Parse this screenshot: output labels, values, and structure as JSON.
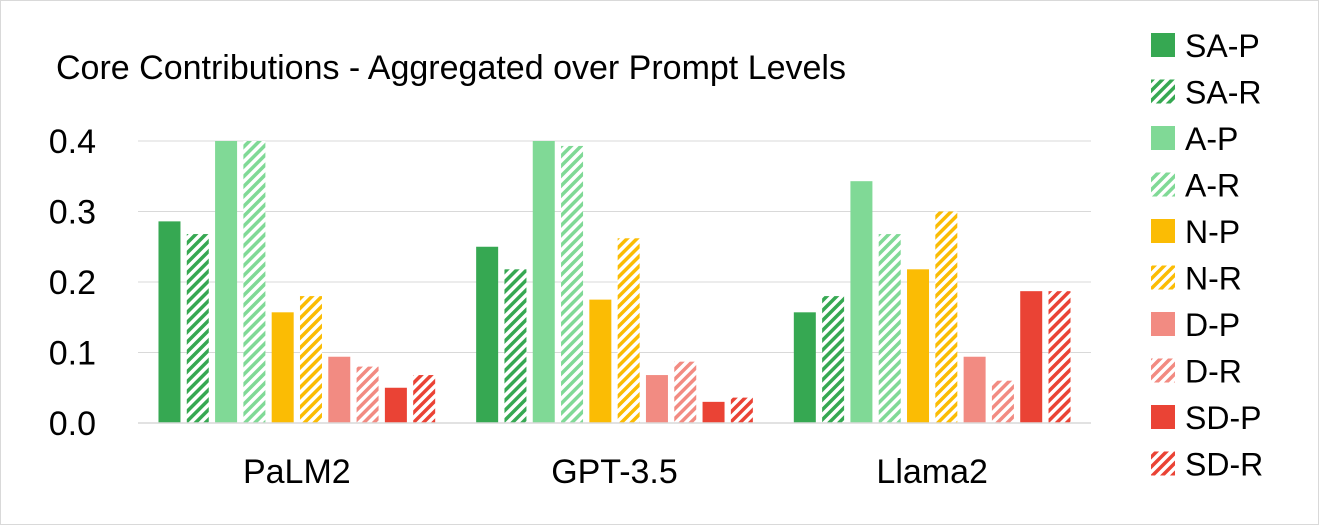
{
  "chart_data": {
    "type": "bar",
    "title": "Core Contributions - Aggregated over Prompt Levels",
    "categories": [
      "PaLM2",
      "GPT-3.5",
      "Llama2"
    ],
    "ylim": [
      0,
      0.4
    ],
    "yticks": [
      "0.0",
      "0.1",
      "0.2",
      "0.3",
      "0.4"
    ],
    "grid": true,
    "legend_position": "right",
    "series": [
      {
        "name": "SA-P",
        "values": [
          0.286,
          0.25,
          0.157
        ],
        "color": "#36a852",
        "pattern": "solid"
      },
      {
        "name": "SA-R",
        "values": [
          0.268,
          0.218,
          0.18
        ],
        "color": "#36a852",
        "pattern": "hatch"
      },
      {
        "name": "A-P",
        "values": [
          0.4,
          0.4,
          0.343
        ],
        "color": "#80d996",
        "pattern": "solid"
      },
      {
        "name": "A-R",
        "values": [
          0.4,
          0.393,
          0.268
        ],
        "color": "#80d996",
        "pattern": "hatch"
      },
      {
        "name": "N-P",
        "values": [
          0.157,
          0.175,
          0.218
        ],
        "color": "#fbbc04",
        "pattern": "solid"
      },
      {
        "name": "N-R",
        "values": [
          0.18,
          0.262,
          0.3
        ],
        "color": "#fbbc04",
        "pattern": "hatch"
      },
      {
        "name": "D-P",
        "values": [
          0.094,
          0.068,
          0.094
        ],
        "color": "#f28b82",
        "pattern": "solid"
      },
      {
        "name": "D-R",
        "values": [
          0.08,
          0.087,
          0.06
        ],
        "color": "#f28b82",
        "pattern": "hatch"
      },
      {
        "name": "SD-P",
        "values": [
          0.05,
          0.03,
          0.187
        ],
        "color": "#ea4335",
        "pattern": "solid"
      },
      {
        "name": "SD-R",
        "values": [
          0.068,
          0.036,
          0.187
        ],
        "color": "#ea4335",
        "pattern": "hatch"
      }
    ]
  }
}
